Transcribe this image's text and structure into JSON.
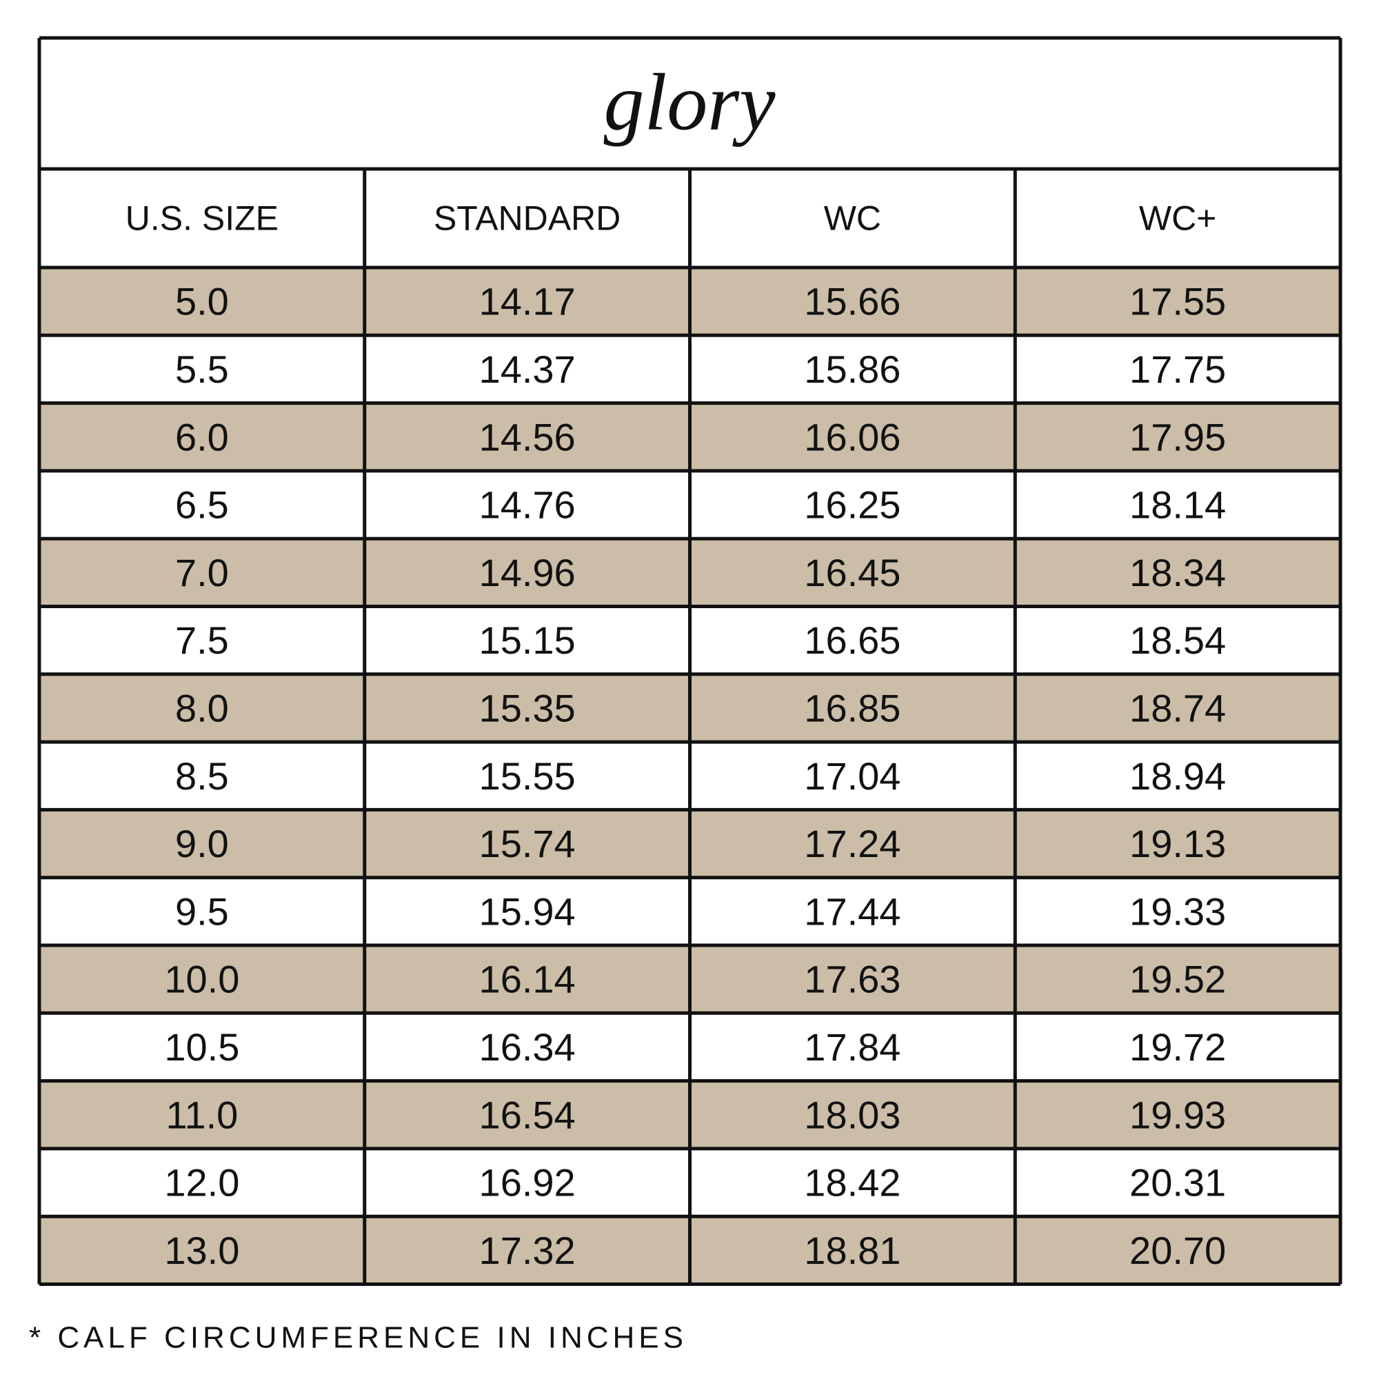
{
  "title": "glory",
  "table": {
    "headers": [
      "U.S. SIZE",
      "STANDARD",
      "WC",
      "WC+"
    ],
    "rows": [
      [
        "5.0",
        "14.17",
        "15.66",
        "17.55"
      ],
      [
        "5.5",
        "14.37",
        "15.86",
        "17.75"
      ],
      [
        "6.0",
        "14.56",
        "16.06",
        "17.95"
      ],
      [
        "6.5",
        "14.76",
        "16.25",
        "18.14"
      ],
      [
        "7.0",
        "14.96",
        "16.45",
        "18.34"
      ],
      [
        "7.5",
        "15.15",
        "16.65",
        "18.54"
      ],
      [
        "8.0",
        "15.35",
        "16.85",
        "18.74"
      ],
      [
        "8.5",
        "15.55",
        "17.04",
        "18.94"
      ],
      [
        "9.0",
        "15.74",
        "17.24",
        "19.13"
      ],
      [
        "9.5",
        "15.94",
        "17.44",
        "19.33"
      ],
      [
        "10.0",
        "16.14",
        "17.63",
        "19.52"
      ],
      [
        "10.5",
        "16.34",
        "17.84",
        "19.72"
      ],
      [
        "11.0",
        "16.54",
        "18.03",
        "19.93"
      ],
      [
        "12.0",
        "16.92",
        "18.42",
        "20.31"
      ],
      [
        "13.0",
        "17.32",
        "18.81",
        "20.70"
      ]
    ]
  },
  "footnote": "* CALF CIRCUMFERENCE IN INCHES"
}
